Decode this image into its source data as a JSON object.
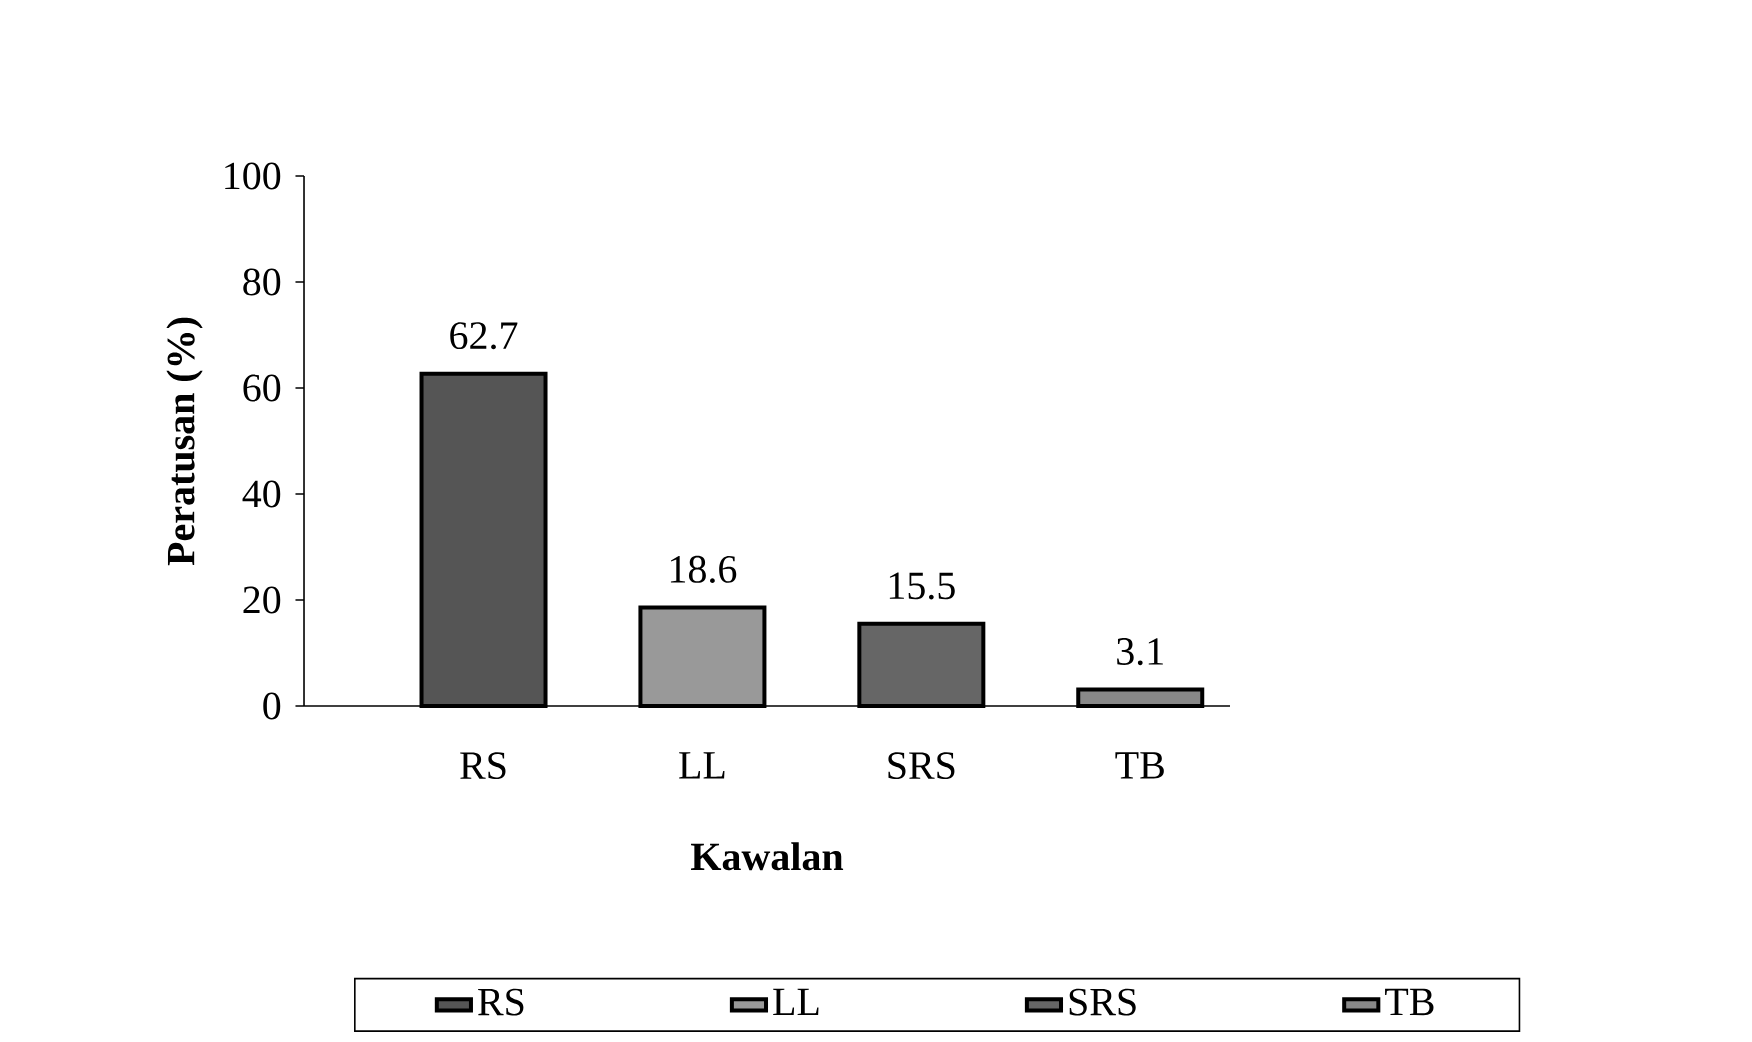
{
  "chart_data": {
    "type": "bar",
    "xlabel": "Kawalan",
    "ylabel": "Peratusan (%)",
    "categories": [
      "RS",
      "LL",
      "SRS",
      "TB"
    ],
    "series": [
      {
        "name": "RS",
        "color": "#555555",
        "values": [
          62.7,
          null,
          null,
          null
        ]
      },
      {
        "name": "LL",
        "color": "#999999",
        "values": [
          null,
          18.6,
          null,
          null
        ]
      },
      {
        "name": "SRS",
        "color": "#666666",
        "values": [
          null,
          null,
          15.5,
          null
        ]
      },
      {
        "name": "TB",
        "color": "#888888",
        "values": [
          null,
          null,
          null,
          3.1
        ]
      }
    ],
    "ylim": [
      0,
      100
    ],
    "yticks": [
      0,
      20,
      40,
      60,
      80,
      100
    ],
    "data_labels": true,
    "legend": "bottom",
    "grid": false
  }
}
